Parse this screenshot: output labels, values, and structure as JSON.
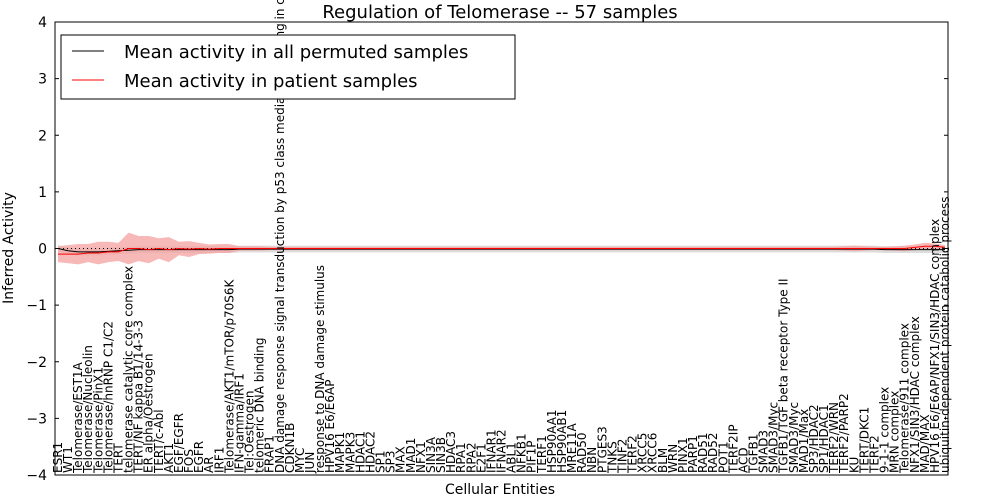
{
  "chart_data": {
    "type": "line",
    "title": "Regulation of Telomerase -- 57 samples",
    "xlabel": "Cellular Entities",
    "ylabel": "Inferred Activity",
    "ylim": [
      -4,
      4
    ],
    "yticks": [
      -4,
      -3,
      -2,
      -1,
      0,
      1,
      2,
      3,
      4
    ],
    "ytick_labels": [
      "−4",
      "−3",
      "−2",
      "−1",
      "0",
      "1",
      "2",
      "3",
      "4"
    ],
    "grid": false,
    "legend_position": "top-left",
    "categories": [
      "ESR1",
      "WT1",
      "Telomerase/EST1A",
      "Telomerase/Nucleolin",
      "Telomerase/PinX1",
      "Telomerase/hnRNP C1/C2",
      "TERT",
      "telomerase catalytic core complex",
      "TERT/NF kappa B1/14-3-3",
      "ER alpha/Oestrogen",
      "TERT/c-Abl",
      "AKT1",
      "EGF/EGFR",
      "FOS",
      "EGFR",
      "AR",
      "IRF1",
      "Telomerase/AKT1/mTOR/p70S6K",
      "IFN-gamma/IRF1",
      "Tel:Oestrogen",
      "telomeric DNA binding",
      "FRAP1",
      "DNA damage response signal transduction by p53 class mediator resulting in cell cycle arrest",
      "CDKN1B",
      "MYC",
      "JUN",
      "response to DNA damage stimulus",
      "HPV16 E6/E6AP",
      "MAPK1",
      "MAPK3",
      "HDAC1",
      "HDAC2",
      "SP1",
      "SP3",
      "MAX",
      "MAD1",
      "NFX1",
      "SIN3A",
      "SIN3B",
      "HDAC3",
      "RPA1",
      "RPA2",
      "E2F1",
      "IFNAR1",
      "IFNAR2",
      "ABL1",
      "NFKB1",
      "PIF1P",
      "TERF1",
      "HSP90AA1",
      "HSP90AB1",
      "MRE11A",
      "RAD50",
      "NBN",
      "PTGES3",
      "TNKS",
      "TINF2",
      "TERF2",
      "XRCC5",
      "XRCC6",
      "BLM",
      "WRN",
      "PINX1",
      "PARP1",
      "RAD51",
      "RAD52",
      "POT1",
      "TERF2IP",
      "ACD",
      "TGFB1",
      "SMAD3",
      "SMAD3/Myc",
      "TGFB1/TGF beta receptor Type II",
      "SMAD3/Myc",
      "MAD1/Max",
      "SP3/HDAC2",
      "SP1/HDAC1",
      "TERF2/WRN",
      "TERF2/PARP2",
      "KU",
      "TERT/DKC1",
      "TERF2",
      "9-1-1 complex",
      "MRN complex",
      "Telomerase/911 complex",
      "NFX1/SIN3/HDAC complex",
      "MAD/MAX",
      "HPV16 E6/E6AP/NFX1/SIN3/HDAC complex",
      "ubiquitin-dependent protein catabolic process"
    ],
    "series": [
      {
        "name": "Mean activity in all permuted samples",
        "color": "#000000",
        "values": [
          0.0,
          -0.04,
          -0.06,
          -0.06,
          -0.06,
          -0.05,
          -0.04,
          -0.03,
          -0.02,
          -0.02,
          -0.02,
          -0.02,
          -0.02,
          -0.02,
          -0.02,
          -0.02,
          -0.02,
          -0.02,
          -0.01,
          -0.01,
          -0.01,
          -0.01,
          -0.01,
          -0.01,
          -0.01,
          -0.01,
          -0.01,
          -0.01,
          -0.01,
          -0.01,
          -0.01,
          -0.01,
          -0.01,
          -0.01,
          -0.01,
          -0.01,
          -0.01,
          -0.01,
          -0.01,
          -0.01,
          -0.01,
          -0.01,
          -0.01,
          -0.01,
          -0.01,
          -0.01,
          -0.01,
          -0.01,
          -0.01,
          -0.01,
          -0.01,
          -0.01,
          -0.01,
          -0.01,
          -0.01,
          -0.01,
          -0.01,
          -0.01,
          -0.01,
          -0.01,
          -0.01,
          -0.01,
          -0.01,
          -0.01,
          -0.01,
          -0.01,
          -0.01,
          -0.01,
          -0.01,
          -0.01,
          -0.01,
          -0.01,
          -0.01,
          -0.01,
          -0.01,
          -0.01,
          -0.01,
          -0.01,
          -0.01,
          -0.01,
          -0.01,
          -0.01,
          -0.02,
          -0.02,
          -0.02,
          -0.02,
          -0.02,
          -0.02,
          -0.02
        ],
        "band": [
          0.06,
          0.06,
          0.06,
          0.06,
          0.06,
          0.06,
          0.06,
          0.06,
          0.06,
          0.06,
          0.06,
          0.06,
          0.06,
          0.06,
          0.06,
          0.06,
          0.06,
          0.06,
          0.06,
          0.06,
          0.06,
          0.06,
          0.06,
          0.06,
          0.06,
          0.06,
          0.06,
          0.06,
          0.06,
          0.06,
          0.06,
          0.06,
          0.06,
          0.06,
          0.06,
          0.06,
          0.06,
          0.06,
          0.06,
          0.06,
          0.06,
          0.06,
          0.06,
          0.06,
          0.06,
          0.06,
          0.06,
          0.06,
          0.06,
          0.06,
          0.06,
          0.06,
          0.06,
          0.06,
          0.06,
          0.06,
          0.06,
          0.06,
          0.06,
          0.06,
          0.06,
          0.06,
          0.06,
          0.06,
          0.06,
          0.06,
          0.06,
          0.06,
          0.06,
          0.06,
          0.06,
          0.06,
          0.06,
          0.06,
          0.06,
          0.06,
          0.06,
          0.06,
          0.06,
          0.06,
          0.06,
          0.06,
          0.06,
          0.06,
          0.06,
          0.06,
          0.06,
          0.06,
          0.06
        ]
      },
      {
        "name": "Mean activity in patient samples",
        "color": "#ff0000",
        "values": [
          -0.1,
          -0.1,
          -0.1,
          -0.08,
          -0.08,
          -0.06,
          -0.06,
          0.0,
          0.0,
          -0.02,
          0.0,
          -0.02,
          0.0,
          -0.01,
          0.0,
          -0.01,
          0.0,
          0.0,
          0.0,
          0.0,
          0.0,
          0.0,
          0.0,
          0.0,
          0.0,
          0.0,
          0.0,
          0.0,
          0.0,
          0.0,
          0.0,
          0.0,
          0.0,
          0.0,
          0.0,
          0.0,
          0.0,
          0.0,
          0.0,
          0.0,
          0.0,
          0.0,
          0.0,
          0.0,
          0.0,
          0.0,
          0.0,
          0.0,
          0.0,
          0.0,
          0.0,
          0.0,
          0.0,
          0.0,
          0.0,
          0.0,
          0.0,
          0.0,
          0.0,
          0.0,
          0.0,
          0.0,
          0.0,
          0.0,
          0.0,
          0.0,
          0.0,
          0.0,
          0.0,
          0.0,
          0.0,
          0.0,
          0.0,
          0.0,
          0.0,
          0.0,
          0.0,
          0.0,
          0.0,
          0.0,
          0.0,
          0.0,
          0.0,
          0.0,
          0.0,
          0.02,
          0.04,
          0.04,
          0.02
        ],
        "band": [
          0.14,
          0.16,
          0.18,
          0.16,
          0.2,
          0.18,
          0.16,
          0.28,
          0.22,
          0.24,
          0.18,
          0.22,
          0.12,
          0.14,
          0.1,
          0.08,
          0.08,
          0.08,
          0.04,
          0.04,
          0.04,
          0.03,
          0.03,
          0.03,
          0.03,
          0.03,
          0.03,
          0.03,
          0.03,
          0.03,
          0.03,
          0.03,
          0.03,
          0.03,
          0.03,
          0.03,
          0.03,
          0.03,
          0.03,
          0.03,
          0.03,
          0.03,
          0.03,
          0.03,
          0.03,
          0.03,
          0.03,
          0.03,
          0.03,
          0.03,
          0.03,
          0.03,
          0.03,
          0.03,
          0.03,
          0.03,
          0.03,
          0.03,
          0.03,
          0.03,
          0.03,
          0.03,
          0.03,
          0.03,
          0.03,
          0.03,
          0.03,
          0.03,
          0.03,
          0.03,
          0.03,
          0.03,
          0.03,
          0.03,
          0.03,
          0.03,
          0.03,
          0.03,
          0.04,
          0.05,
          0.04,
          0.03,
          0.03,
          0.04,
          0.05,
          0.05,
          0.06,
          0.05,
          0.04
        ]
      }
    ],
    "colors": {
      "permuted_band": "#d9d9d9",
      "patient_band": "#f4a0a0",
      "zero_line": "#000000"
    }
  }
}
